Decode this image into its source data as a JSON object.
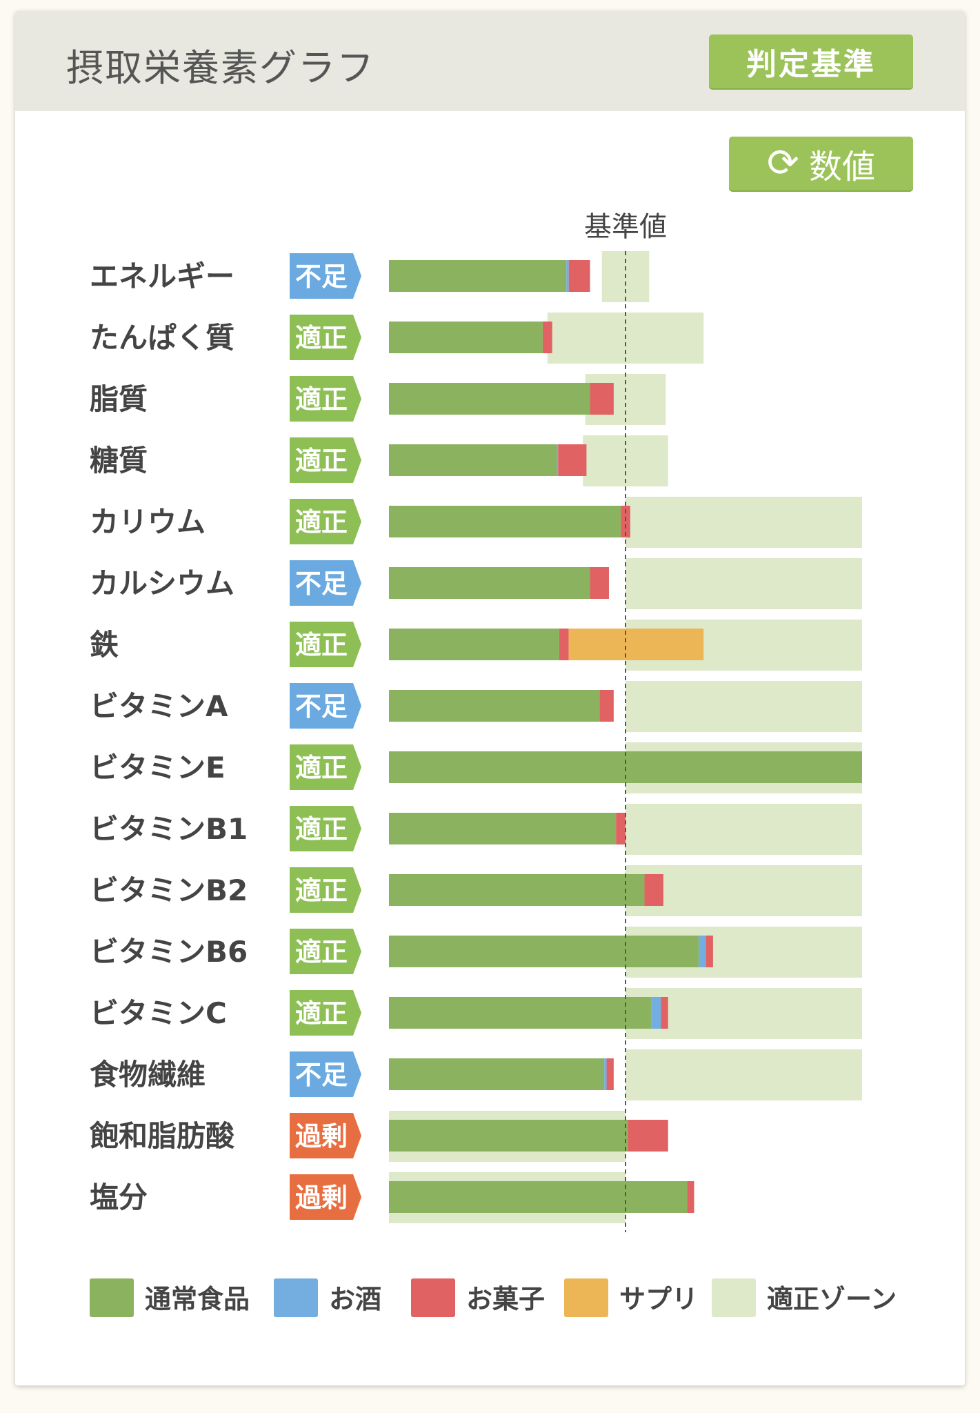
{
  "header": {
    "title": "摂取栄養素グラフ",
    "judge_button_label": "判定基準"
  },
  "toolbar": {
    "value_button_label": "数値",
    "value_button_icon": "refresh-icon"
  },
  "colors": {
    "normal_food": "#8bb35f",
    "alcohol": "#74aee0",
    "snack": "#e06262",
    "supplement": "#ecb657",
    "zone": "#dde9c9",
    "status_low": "#6aaae0",
    "status_ok": "#8dbf54",
    "status_high": "#e76e40"
  },
  "chart_data": {
    "type": "bar",
    "orientation": "horizontal",
    "stacked": true,
    "reference_label": "基準値",
    "reference_value": 100,
    "xlim": [
      0,
      200
    ],
    "categories": [
      "エネルギー",
      "たんぱく質",
      "脂質",
      "糖質",
      "カリウム",
      "カルシウム",
      "鉄",
      "ビタミンA",
      "ビタミンE",
      "ビタミンB1",
      "ビタミンB2",
      "ビタミンB6",
      "ビタミンC",
      "食物繊維",
      "飽和脂肪酸",
      "塩分"
    ],
    "status": [
      "不足",
      "適正",
      "適正",
      "適正",
      "適正",
      "不足",
      "適正",
      "不足",
      "適正",
      "適正",
      "適正",
      "適正",
      "適正",
      "不足",
      "過剰",
      "過剰"
    ],
    "series": [
      {
        "name": "通常食品",
        "key": "normal_food",
        "values": [
          75,
          65,
          85,
          71,
          98,
          85,
          72,
          89,
          200,
          96,
          108,
          131,
          111,
          91,
          101,
          126
        ]
      },
      {
        "name": "お酒",
        "key": "alcohol",
        "values": [
          1,
          0,
          0,
          0.5,
          0,
          0,
          0,
          0,
          0,
          0,
          0,
          3,
          4,
          1,
          0,
          0
        ]
      },
      {
        "name": "お菓子",
        "key": "snack",
        "values": [
          9,
          4,
          10,
          12,
          4,
          8,
          4,
          6,
          0,
          4,
          8,
          3,
          3,
          3,
          17,
          3
        ]
      },
      {
        "name": "サプリ",
        "key": "supplement",
        "values": [
          0,
          0,
          0,
          0,
          0,
          0,
          57,
          0,
          0,
          0,
          0,
          0,
          0,
          0,
          0,
          0
        ]
      }
    ],
    "zones": [
      [
        90,
        110
      ],
      [
        67,
        133
      ],
      [
        83,
        117
      ],
      [
        82,
        118
      ],
      [
        100,
        200
      ],
      [
        100,
        200
      ],
      [
        100,
        200
      ],
      [
        100,
        200
      ],
      [
        100,
        200
      ],
      [
        100,
        200
      ],
      [
        100,
        200
      ],
      [
        100,
        200
      ],
      [
        100,
        200
      ],
      [
        100,
        200
      ],
      [
        0,
        100
      ],
      [
        0,
        100
      ]
    ],
    "legend": [
      "通常食品",
      "お酒",
      "お菓子",
      "サプリ",
      "適正ゾーン"
    ]
  }
}
